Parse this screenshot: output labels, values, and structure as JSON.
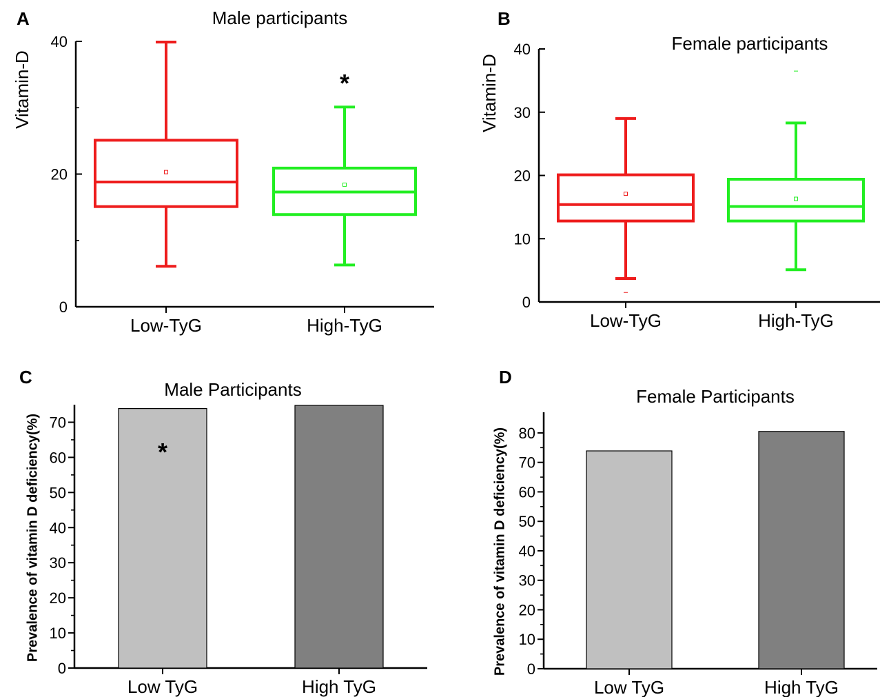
{
  "figure": {
    "panels": [
      {
        "letter": "A",
        "title": "Male participants"
      },
      {
        "letter": "B",
        "title": "Female participants"
      },
      {
        "letter": "C",
        "title": "Male Participants"
      },
      {
        "letter": "D",
        "title": "Female Participants"
      }
    ]
  },
  "chart_data": [
    {
      "panel": "A",
      "type": "box",
      "title": "Male participants",
      "ylabel": "Vitamin-D",
      "xlabel": "",
      "ylim": [
        0,
        40
      ],
      "yticks": [
        0,
        20,
        40
      ],
      "categories": [
        "Low-TyG",
        "High-TyG"
      ],
      "boxes": [
        {
          "category": "Low-TyG",
          "whisker_low": 6.1,
          "q1": 15.1,
          "median": 18.8,
          "q3": 25.1,
          "whisker_high": 39.9,
          "mean": 20.3,
          "color": "#ee1c1c"
        },
        {
          "category": "High-TyG",
          "whisker_low": 6.3,
          "q1": 13.9,
          "median": 17.3,
          "q3": 20.9,
          "whisker_high": 30.1,
          "mean": 18.4,
          "color": "#22ee22"
        }
      ],
      "annotations": [
        {
          "text": "*",
          "category": "High-TyG",
          "y": 34.5
        }
      ]
    },
    {
      "panel": "B",
      "type": "box",
      "title": "Female participants",
      "ylabel": "Vitamin-D",
      "xlabel": "",
      "ylim": [
        0,
        40
      ],
      "yticks": [
        0,
        10,
        20,
        30,
        40
      ],
      "categories": [
        "Low-TyG",
        "High-TyG"
      ],
      "boxes": [
        {
          "category": "Low-TyG",
          "whisker_low": 3.7,
          "q1": 12.8,
          "median": 15.4,
          "q3": 20.1,
          "whisker_high": 29.0,
          "mean": 17.1,
          "outliers": [
            1.5
          ],
          "color": "#ee1c1c"
        },
        {
          "category": "High-TyG",
          "whisker_low": 5.1,
          "q1": 12.8,
          "median": 15.1,
          "q3": 19.4,
          "whisker_high": 28.3,
          "mean": 16.3,
          "outliers": [
            36.5
          ],
          "color": "#22ee22"
        }
      ]
    },
    {
      "panel": "C",
      "type": "bar",
      "title": "Male Participants",
      "ylabel": "Prevalence of vitamin D deficiency(%)",
      "xlabel": "",
      "ylim": [
        0,
        75
      ],
      "yticks": [
        0,
        10,
        20,
        30,
        40,
        50,
        60,
        70
      ],
      "categories": [
        "Low TyG",
        "High TyG"
      ],
      "values": [
        73.9,
        74.8
      ],
      "colors": [
        "#c0c0c0",
        "#808080"
      ],
      "annotations": [
        {
          "text": "*",
          "category": "Low TyG",
          "y": 63
        }
      ]
    },
    {
      "panel": "D",
      "type": "bar",
      "title": "Female Participants",
      "ylabel": "Prevalence of vitamin D deficiency(%)",
      "xlabel": "",
      "ylim": [
        0,
        87
      ],
      "yticks": [
        0,
        10,
        20,
        30,
        40,
        50,
        60,
        70,
        80
      ],
      "categories": [
        "Low TyG",
        "High TyG"
      ],
      "values": [
        73.9,
        80.5
      ],
      "colors": [
        "#c0c0c0",
        "#808080"
      ]
    }
  ]
}
